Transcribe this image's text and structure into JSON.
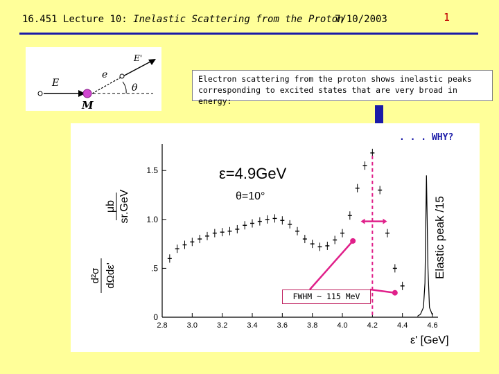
{
  "header": {
    "course": "16.451",
    "lecture": "Lecture 10:",
    "topic": "Inelastic Scattering from the Proton",
    "date": "7/10/2003",
    "page": "1"
  },
  "kinematics": {
    "labels": {
      "beam": "E",
      "scattered": "E'",
      "electron": "e",
      "angle": "θ",
      "target": "M"
    }
  },
  "caption": {
    "line1": "Electron scattering from the proton shows inelastic peaks",
    "line2": "corresponding to excited states that are very broad in energy:"
  },
  "why_label": ". . . WHY?",
  "fwhm_label": "FWHM ~ 115 MeV",
  "colors": {
    "background": "#ffff99",
    "rule": "#1a1aa8",
    "page_number": "#c00000",
    "arrow": "#1a1aa8",
    "annotation": "#e0208a"
  },
  "chart_data": {
    "type": "scatter",
    "legend_text": {
      "energy": "ε=4.9GeV",
      "angle": "θ=10°"
    },
    "xlabel": "ε' [GeV]",
    "ylabel_top": "μb",
    "ylabel_bottom": "sr.GeV",
    "ylabel_left_top": "d²σ",
    "ylabel_left_bottom": "dΩdε'",
    "elastic_label": "Elastic peak /15",
    "xlim": [
      2.8,
      4.6
    ],
    "ylim": [
      0,
      1.7
    ],
    "x_ticks": [
      "2.8",
      "3.0",
      "3.2",
      "3.4",
      "3.6",
      "3.8",
      "4.0",
      "4.2",
      "4.4",
      "4.6"
    ],
    "y_ticks": [
      {
        "value": 0,
        "label": "0"
      },
      {
        "value": 0.5,
        "label": ".5"
      },
      {
        "value": 1.0,
        "label": "1.0"
      },
      {
        "value": 1.5,
        "label": "1.5"
      }
    ],
    "x": [
      2.85,
      2.9,
      2.95,
      3.0,
      3.05,
      3.1,
      3.15,
      3.2,
      3.25,
      3.3,
      3.35,
      3.4,
      3.45,
      3.5,
      3.55,
      3.6,
      3.65,
      3.7,
      3.75,
      3.8,
      3.85,
      3.9,
      3.95,
      4.0,
      4.05,
      4.1,
      4.15,
      4.2,
      4.25,
      4.3,
      4.35,
      4.4
    ],
    "y": [
      0.6,
      0.7,
      0.74,
      0.77,
      0.8,
      0.83,
      0.86,
      0.87,
      0.88,
      0.9,
      0.94,
      0.96,
      0.98,
      1.0,
      1.01,
      0.99,
      0.95,
      0.88,
      0.8,
      0.75,
      0.72,
      0.73,
      0.79,
      0.86,
      1.04,
      1.32,
      1.55,
      1.68,
      1.3,
      0.86,
      0.5,
      0.32
    ],
    "elastic_peak": {
      "x": [
        4.5,
        4.52,
        4.54,
        4.55,
        4.56,
        4.57,
        4.58,
        4.6
      ],
      "y": [
        0.01,
        0.03,
        0.1,
        0.35,
        1.45,
        0.5,
        0.1,
        0.02
      ]
    },
    "fwhm_marker_x": 4.2
  }
}
